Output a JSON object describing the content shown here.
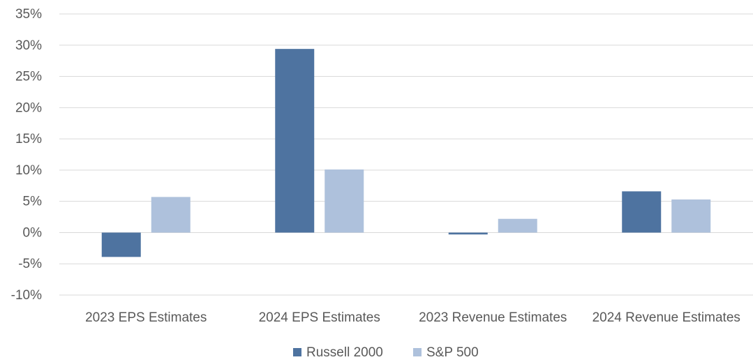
{
  "chart_data": {
    "type": "bar",
    "title": "",
    "xlabel": "",
    "ylabel": "",
    "categories": [
      "2023 EPS Estimates",
      "2024 EPS Estimates",
      "2023 Revenue Estimates",
      "2024 Revenue Estimates"
    ],
    "series": [
      {
        "name": "Russell 2000",
        "color": "#4e73a0",
        "values": [
          -3.9,
          29.4,
          -0.3,
          6.6
        ]
      },
      {
        "name": "S&P 500",
        "color": "#aec1dc",
        "values": [
          5.7,
          10.1,
          2.2,
          5.3
        ]
      }
    ],
    "ylim": [
      -10,
      35
    ],
    "yticks": [
      35,
      30,
      25,
      20,
      15,
      10,
      5,
      0,
      -5,
      -10
    ],
    "ytick_labels": [
      "35%",
      "30%",
      "25%",
      "20%",
      "15%",
      "10%",
      "5%",
      "0%",
      "-5%",
      "-10%"
    ],
    "grid": true,
    "legend_position": "bottom"
  }
}
